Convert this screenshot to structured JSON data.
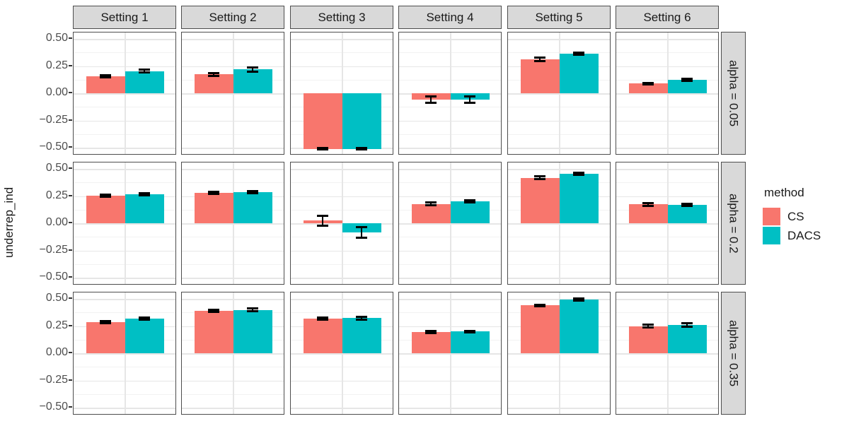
{
  "chart_data": {
    "type": "bar",
    "title": "",
    "xlabel": "",
    "ylabel": "underrep_ind",
    "facet_columns": [
      "Setting 1",
      "Setting 2",
      "Setting 3",
      "Setting 4",
      "Setting 5",
      "Setting 6"
    ],
    "facet_rows": [
      "alpha = 0.05",
      "alpha = 0.2",
      "alpha = 0.35"
    ],
    "ylim": [
      -0.57,
      0.56
    ],
    "grid": true,
    "y_ticks": [
      {
        "label": "0.50",
        "value": 0.5
      },
      {
        "label": "0.25",
        "value": 0.25
      },
      {
        "label": "0.00",
        "value": 0.0
      },
      {
        "label": "−0.25",
        "value": -0.25
      },
      {
        "label": "−0.50",
        "value": -0.5
      }
    ],
    "y_minor_gridlines": [
      0.375,
      0.125,
      -0.125,
      -0.375
    ],
    "legend": {
      "title": "method",
      "position": "right",
      "entries": [
        {
          "name": "CS",
          "color": "#F8766D"
        },
        {
          "name": "DACS",
          "color": "#00BFC4"
        }
      ]
    },
    "cells": [
      [
        {
          "CS": 0.155,
          "CS_err": 0.01,
          "DACS": 0.205,
          "DACS_err": 0.012
        },
        {
          "CS": 0.175,
          "CS_err": 0.012,
          "DACS": 0.22,
          "DACS_err": 0.02
        },
        {
          "CS": -0.51,
          "CS_err": 0.006,
          "DACS": -0.51,
          "DACS_err": 0.006
        },
        {
          "CS": -0.055,
          "CS_err": 0.03,
          "DACS": -0.055,
          "DACS_err": 0.03
        },
        {
          "CS": 0.315,
          "CS_err": 0.015,
          "DACS": 0.365,
          "DACS_err": 0.01
        },
        {
          "CS": 0.09,
          "CS_err": 0.008,
          "DACS": 0.125,
          "DACS_err": 0.01
        }
      ],
      [
        {
          "CS": 0.255,
          "CS_err": 0.008,
          "DACS": 0.27,
          "DACS_err": 0.01
        },
        {
          "CS": 0.28,
          "CS_err": 0.01,
          "DACS": 0.285,
          "DACS_err": 0.01
        },
        {
          "CS": 0.025,
          "CS_err": 0.045,
          "DACS": -0.085,
          "DACS_err": 0.048
        },
        {
          "CS": 0.18,
          "CS_err": 0.01,
          "DACS": 0.205,
          "DACS_err": 0.01
        },
        {
          "CS": 0.42,
          "CS_err": 0.012,
          "DACS": 0.455,
          "DACS_err": 0.01
        },
        {
          "CS": 0.175,
          "CS_err": 0.012,
          "DACS": 0.17,
          "DACS_err": 0.012
        }
      ],
      [
        {
          "CS": 0.285,
          "CS_err": 0.01,
          "DACS": 0.32,
          "DACS_err": 0.008
        },
        {
          "CS": 0.39,
          "CS_err": 0.01,
          "DACS": 0.4,
          "DACS_err": 0.012
        },
        {
          "CS": 0.32,
          "CS_err": 0.012,
          "DACS": 0.325,
          "DACS_err": 0.012
        },
        {
          "CS": 0.195,
          "CS_err": 0.008,
          "DACS": 0.2,
          "DACS_err": 0.008
        },
        {
          "CS": 0.44,
          "CS_err": 0.008,
          "DACS": 0.495,
          "DACS_err": 0.008
        },
        {
          "CS": 0.25,
          "CS_err": 0.012,
          "DACS": 0.26,
          "DACS_err": 0.015
        }
      ]
    ],
    "theme": {
      "strip_fill": "#D9D9D9",
      "strip_border": "#4D4D4D",
      "panel_border": "#4D4D4D",
      "panel_bg": "#FFFFFF",
      "grid_major": "#E6E6E6",
      "grid_minor": "#F2F2F2",
      "tick_text": "#4D4D4D",
      "text": "#1A1A1A",
      "error_bar": "#000000"
    }
  }
}
